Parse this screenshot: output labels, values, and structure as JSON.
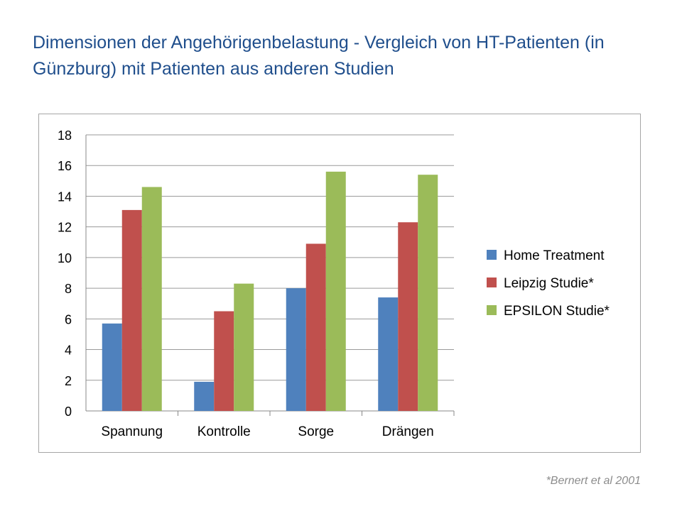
{
  "slide": {
    "title": "Dimensionen der Angehörigenbelastung - Vergleich von HT-Patienten (in Günzburg) mit Patienten aus anderen Studien",
    "footnote": "*Bernert et al 2001"
  },
  "chart_data": {
    "type": "bar",
    "title": "",
    "xlabel": "",
    "ylabel": "",
    "categories": [
      "Spannung",
      "Kontrolle",
      "Sorge",
      "Drängen"
    ],
    "series": [
      {
        "name": "Home Treatment",
        "color": "#4f81bd",
        "values": [
          5.7,
          1.9,
          8.0,
          7.4
        ]
      },
      {
        "name": "Leipzig Studie*",
        "color": "#c0504d",
        "values": [
          13.1,
          6.5,
          10.9,
          12.3
        ]
      },
      {
        "name": "EPSILON Studie*",
        "color": "#9bbb59",
        "values": [
          14.6,
          8.3,
          15.6,
          15.4
        ]
      }
    ],
    "ylim": [
      0,
      18
    ],
    "yticks": [
      "0",
      "2",
      "4",
      "6",
      "8",
      "10",
      "12",
      "14",
      "16",
      "18"
    ],
    "grid": true,
    "legend": "right"
  }
}
